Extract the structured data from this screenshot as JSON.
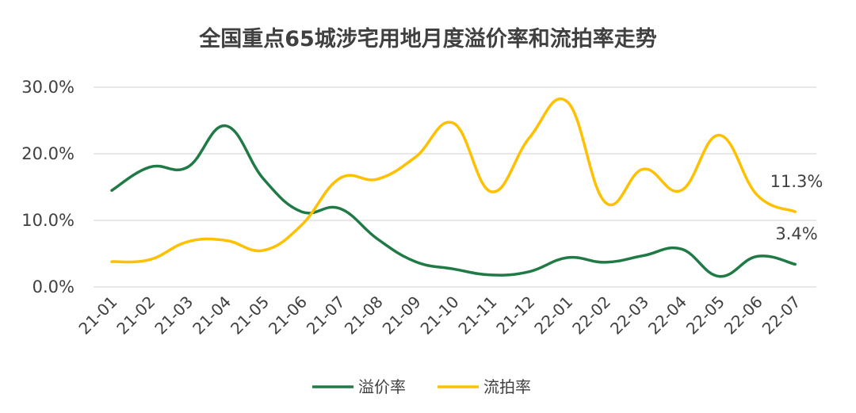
{
  "chart_data": {
    "type": "line",
    "title": "全国重点65城涉宅用地月度溢价率和流拍率走势",
    "categories": [
      "21-01",
      "21-02",
      "21-03",
      "21-04",
      "21-05",
      "21-06",
      "21-07",
      "21-08",
      "21-09",
      "21-10",
      "21-11",
      "21-12",
      "22-01",
      "22-02",
      "22-03",
      "22-04",
      "22-05",
      "22-06",
      "22-07"
    ],
    "series": [
      {
        "name": "溢价率",
        "color": "#1f7a45",
        "values": [
          14.5,
          18.0,
          18.0,
          24.2,
          16.2,
          11.3,
          11.8,
          7.2,
          3.8,
          2.7,
          1.8,
          2.3,
          4.4,
          3.7,
          4.7,
          5.7,
          1.6,
          4.6,
          3.4
        ]
      },
      {
        "name": "流拍率",
        "color": "#ffc000",
        "values": [
          3.8,
          4.1,
          6.8,
          7.0,
          5.5,
          9.3,
          16.3,
          16.2,
          19.5,
          24.6,
          14.3,
          22.4,
          27.8,
          12.7,
          17.7,
          14.5,
          22.8,
          13.8,
          11.3
        ]
      }
    ],
    "ylim": [
      0,
      30
    ],
    "yticks": [
      "0.0%",
      "10.0%",
      "20.0%",
      "30.0%"
    ],
    "ytick_values": [
      0,
      10,
      20,
      30
    ],
    "grid": true,
    "legend_position": "bottom",
    "annotations": [
      "11.3%",
      "3.4%"
    ]
  }
}
